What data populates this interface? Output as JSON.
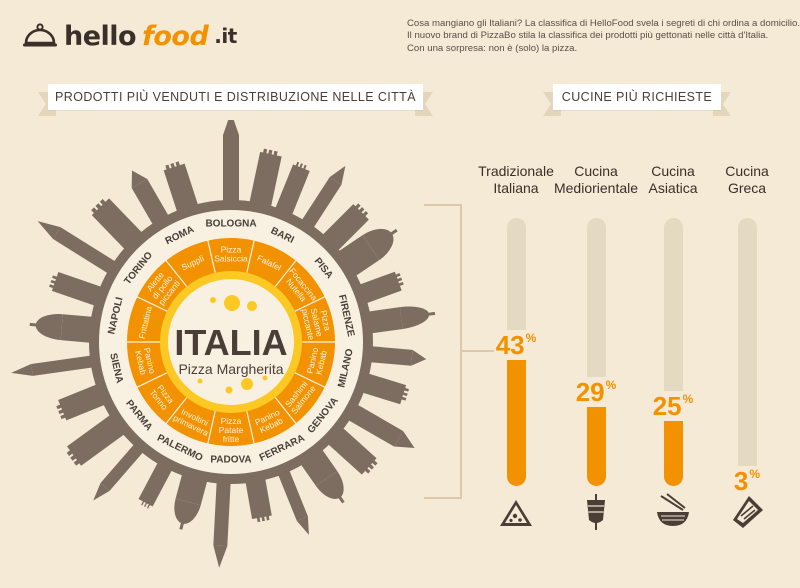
{
  "header": {
    "logo_word1": "hello",
    "logo_word2": "food",
    "logo_tld": ".it",
    "intro_lines": [
      "Cosa mangiano gli Italiani? La classifica di HelloFood svela i segreti di chi ordina a domicilio.",
      "Il nuovo brand di PizzaBo stila la classifica dei prodotti più gettonati nelle città d'Italia.",
      "Con una sorpresa: non è (solo) la pizza."
    ]
  },
  "section_left": {
    "title": "PRODOTTI PIÙ VENDUTI E DISTRIBUZIONE NELLE CITTÀ"
  },
  "section_right": {
    "title": "CUCINE PIÙ RICHIESTE"
  },
  "center": {
    "title": "ITALIA",
    "subtitle": "Pizza Margherita"
  },
  "colors": {
    "orange": "#f39200",
    "orange_light": "#f7a824",
    "yellow": "#fcc823",
    "brown": "#7d6d61",
    "cream": "#f8f1e2"
  },
  "cities": [
    {
      "name": "BOLOGNA",
      "food": [
        "Pizza",
        "Salsiccia"
      ]
    },
    {
      "name": "BARI",
      "food": [
        "Falafel"
      ]
    },
    {
      "name": "PISA",
      "food": [
        "Focaccina",
        "Nutella"
      ]
    },
    {
      "name": "FIRENZE",
      "food": [
        "Pizza",
        "Salame",
        "piccante"
      ]
    },
    {
      "name": "MILANO",
      "food": [
        "Panino",
        "Kebab"
      ]
    },
    {
      "name": "GENOVA",
      "food": [
        "Sashimi",
        "Salmone"
      ]
    },
    {
      "name": "FERRARA",
      "food": [
        "Panino",
        "Kebab"
      ]
    },
    {
      "name": "PADOVA",
      "food": [
        "Pizza",
        "Patate",
        "fritte"
      ]
    },
    {
      "name": "PALERMO",
      "food": [
        "Involtini",
        "primavera"
      ]
    },
    {
      "name": "PARMA",
      "food": [
        "Pizza",
        "Tonno"
      ]
    },
    {
      "name": "SIENA",
      "food": [
        "Panino",
        "Kebab"
      ]
    },
    {
      "name": "NAPOLI",
      "food": [
        "Frittatina"
      ]
    },
    {
      "name": "TORINO",
      "food": [
        "Alette",
        "di pollo",
        "piccanti"
      ]
    },
    {
      "name": "ROMA",
      "food": [
        "Supplì"
      ]
    }
  ],
  "cuisines": [
    {
      "name": [
        "Tradizionale",
        "Italiana"
      ],
      "percent": 43,
      "pct_label": "43",
      "icon": "pizza-slice-icon"
    },
    {
      "name": [
        "Cucina",
        "Mediorientale"
      ],
      "percent": 29,
      "pct_label": "29",
      "icon": "kebab-icon"
    },
    {
      "name": [
        "Cucina",
        "Asiatica"
      ],
      "percent": 25,
      "pct_label": "25",
      "icon": "noodle-bowl-icon"
    },
    {
      "name": [
        "Cucina",
        "Greca"
      ],
      "percent": 3,
      "pct_label": "3",
      "icon": "gyros-wrap-icon"
    }
  ],
  "percent_symbol": "%"
}
